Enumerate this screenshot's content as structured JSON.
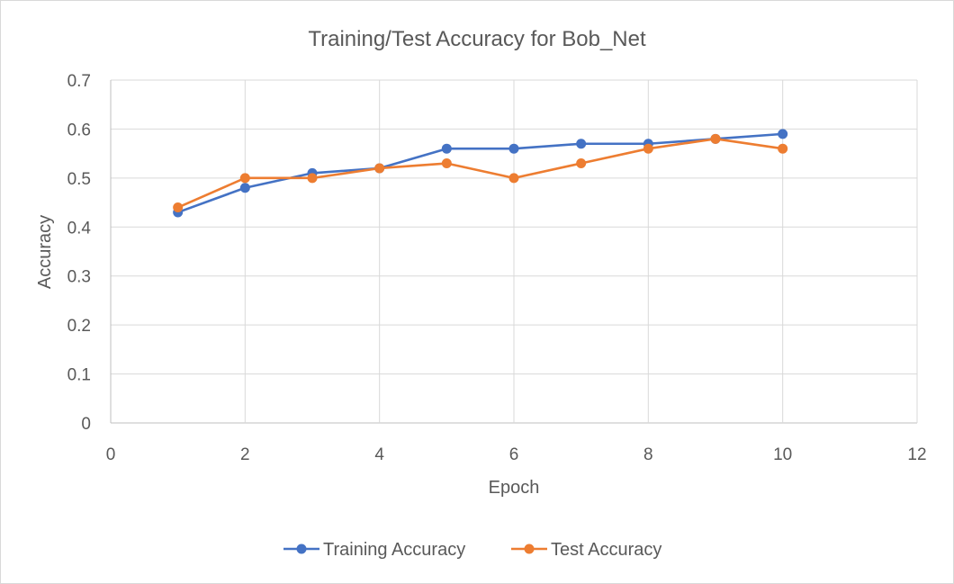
{
  "chart_data": {
    "type": "scatter",
    "title": "Training/Test Accuracy for Bob_Net",
    "xlabel": "Epoch",
    "ylabel": "Accuracy",
    "xlim": [
      0,
      12
    ],
    "ylim": [
      0,
      0.7
    ],
    "xticks": [
      "0",
      "2",
      "4",
      "6",
      "8",
      "10",
      "12"
    ],
    "yticks": [
      "0",
      "0.1",
      "0.2",
      "0.3",
      "0.4",
      "0.5",
      "0.6",
      "0.7"
    ],
    "grid": true,
    "legend_position": "bottom",
    "x": [
      1,
      2,
      3,
      4,
      5,
      6,
      7,
      8,
      9,
      10
    ],
    "series": [
      {
        "name": "Training Accuracy",
        "color": "#4472C4",
        "values": [
          0.43,
          0.48,
          0.51,
          0.52,
          0.56,
          0.56,
          0.57,
          0.57,
          0.58,
          0.59
        ]
      },
      {
        "name": "Test Accuracy",
        "color": "#ED7D31",
        "values": [
          0.44,
          0.5,
          0.5,
          0.52,
          0.53,
          0.5,
          0.53,
          0.56,
          0.58,
          0.56
        ]
      }
    ]
  }
}
